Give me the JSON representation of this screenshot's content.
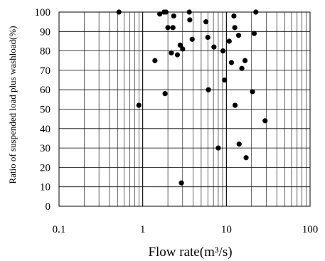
{
  "chart_data": {
    "type": "scatter",
    "xlabel": "Flow rate(m³/s)",
    "ylabel": "Ratio of suspended load plus washload(%)",
    "x_scale": "log",
    "xlim": [
      0.1,
      100
    ],
    "ylim": [
      0,
      100
    ],
    "grid": true,
    "x_ticks": [
      0.1,
      1,
      10,
      100
    ],
    "x_tick_labels": [
      "0.1",
      "1",
      "10",
      "100"
    ],
    "y_ticks": [
      0,
      10,
      20,
      30,
      40,
      50,
      60,
      70,
      80,
      90,
      100
    ],
    "y_tick_labels": [
      "0",
      "10",
      "20",
      "30",
      "40",
      "50",
      "60",
      "70",
      "80",
      "90",
      "100"
    ],
    "points": [
      {
        "x": 0.52,
        "y": 100
      },
      {
        "x": 0.9,
        "y": 52
      },
      {
        "x": 1.4,
        "y": 75
      },
      {
        "x": 1.6,
        "y": 99
      },
      {
        "x": 1.8,
        "y": 100
      },
      {
        "x": 1.9,
        "y": 100
      },
      {
        "x": 1.85,
        "y": 58
      },
      {
        "x": 2.0,
        "y": 92
      },
      {
        "x": 2.2,
        "y": 79
      },
      {
        "x": 2.3,
        "y": 92
      },
      {
        "x": 2.35,
        "y": 98
      },
      {
        "x": 2.6,
        "y": 78
      },
      {
        "x": 2.8,
        "y": 83
      },
      {
        "x": 3.0,
        "y": 81
      },
      {
        "x": 2.9,
        "y": 12
      },
      {
        "x": 3.6,
        "y": 100
      },
      {
        "x": 3.65,
        "y": 96
      },
      {
        "x": 3.9,
        "y": 86
      },
      {
        "x": 5.7,
        "y": 95
      },
      {
        "x": 6.0,
        "y": 87
      },
      {
        "x": 6.1,
        "y": 60
      },
      {
        "x": 7.1,
        "y": 82
      },
      {
        "x": 8.0,
        "y": 30
      },
      {
        "x": 9.1,
        "y": 80
      },
      {
        "x": 9.5,
        "y": 65
      },
      {
        "x": 10.8,
        "y": 85
      },
      {
        "x": 11.5,
        "y": 74
      },
      {
        "x": 12.3,
        "y": 98
      },
      {
        "x": 12.6,
        "y": 92
      },
      {
        "x": 12.7,
        "y": 52
      },
      {
        "x": 14.0,
        "y": 88
      },
      {
        "x": 14.2,
        "y": 32
      },
      {
        "x": 15.3,
        "y": 71
      },
      {
        "x": 16.7,
        "y": 75
      },
      {
        "x": 17.2,
        "y": 25
      },
      {
        "x": 20.5,
        "y": 59
      },
      {
        "x": 21.5,
        "y": 89
      },
      {
        "x": 22.5,
        "y": 100
      },
      {
        "x": 29,
        "y": 44
      }
    ]
  }
}
